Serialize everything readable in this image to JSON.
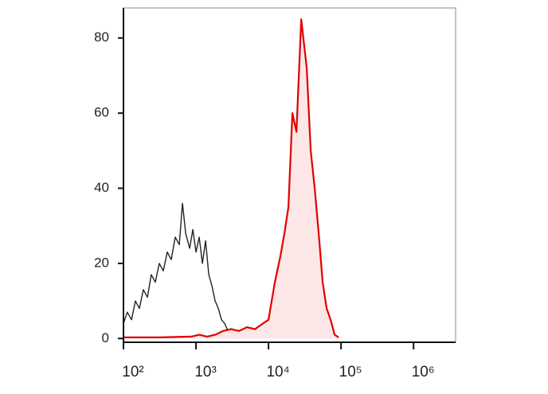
{
  "chart_data": {
    "type": "histogram-overlay",
    "xscale": "log",
    "xlim": [
      100,
      3800000
    ],
    "ylim": [
      -1,
      88
    ],
    "xticks": [
      {
        "value": 100,
        "label": "10²"
      },
      {
        "value": 1000,
        "label": "10³"
      },
      {
        "value": 10000,
        "label": "10⁴"
      },
      {
        "value": 100000,
        "label": "10⁵"
      },
      {
        "value": 1000000,
        "label": "10⁶"
      }
    ],
    "yticks": [
      0,
      20,
      40,
      60,
      80
    ],
    "series": [
      {
        "color": "#222222",
        "x": [
          100,
          113,
          129,
          146,
          166,
          188,
          214,
          242,
          275,
          312,
          354,
          402,
          456,
          518,
          588,
          651,
          720,
          817,
          904,
          1000,
          1107,
          1225,
          1355,
          1500,
          1660,
          1837,
          2032,
          2249,
          2489,
          2754,
          3048,
          3454
        ],
        "values": [
          4,
          7,
          5,
          10,
          8,
          13,
          11,
          17,
          15,
          20,
          18,
          23,
          21,
          27,
          25,
          36,
          28,
          24,
          29,
          23,
          27,
          20,
          26,
          17,
          14,
          10,
          8,
          5,
          4,
          2,
          1,
          0
        ]
      },
      {
        "color": "#e00000",
        "fill": "#fce6e6",
        "x": [
          100,
          312,
          859,
          1107,
          1426,
          1837,
          2366,
          3048,
          3920,
          5050,
          6500,
          8380,
          10000,
          12250,
          14620,
          16600,
          18830,
          21360,
          24270,
          28250,
          33670,
          38200,
          43370,
          49200,
          55850,
          63400,
          71940,
          81660,
          92700
        ],
        "values": [
          0.3,
          0.3,
          0.5,
          1,
          0.5,
          1,
          2,
          2.5,
          2,
          3,
          2.5,
          4,
          5,
          15,
          22,
          28,
          35,
          60,
          55,
          85,
          72,
          50,
          40,
          28,
          15,
          8,
          5,
          1,
          0.3
        ]
      }
    ]
  }
}
